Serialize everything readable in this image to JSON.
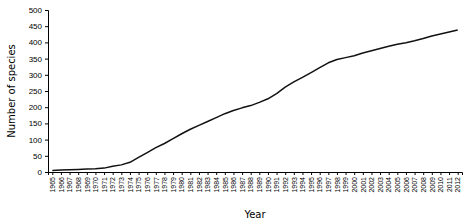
{
  "chart_data": {
    "type": "line",
    "x": [
      1965,
      1966,
      1967,
      1968,
      1969,
      1970,
      1971,
      1972,
      1973,
      1974,
      1975,
      1976,
      1977,
      1978,
      1979,
      1980,
      1981,
      1982,
      1983,
      1984,
      1985,
      1986,
      1987,
      1988,
      1989,
      1990,
      1991,
      1992,
      1993,
      1994,
      1995,
      1996,
      1997,
      1998,
      1999,
      2000,
      2001,
      2002,
      2003,
      2004,
      2005,
      2006,
      2007,
      2008,
      2009,
      2010,
      2011,
      2012
    ],
    "values": [
      5,
      6,
      7,
      8,
      9,
      10,
      12,
      18,
      22,
      30,
      45,
      60,
      75,
      88,
      103,
      118,
      132,
      144,
      156,
      168,
      180,
      190,
      198,
      205,
      215,
      226,
      242,
      262,
      278,
      292,
      307,
      322,
      337,
      347,
      353,
      359,
      367,
      374,
      381,
      388,
      394,
      399,
      405,
      412,
      420,
      426,
      432,
      438
    ],
    "color": "#111111",
    "xlabel": "Year",
    "ylabel": "Number of species",
    "xlim": [
      1964.5,
      2012.5
    ],
    "ylim": [
      0,
      500
    ],
    "xticks": [
      1965,
      1966,
      1967,
      1968,
      1969,
      1970,
      1971,
      1972,
      1973,
      1974,
      1975,
      1976,
      1977,
      1978,
      1979,
      1980,
      1981,
      1982,
      1983,
      1984,
      1985,
      1986,
      1987,
      1988,
      1989,
      1990,
      1991,
      1992,
      1993,
      1994,
      1995,
      1996,
      1997,
      1998,
      1999,
      2000,
      2001,
      2002,
      2003,
      2004,
      2005,
      2006,
      2007,
      2008,
      2009,
      2010,
      2011,
      2012
    ],
    "yticks": [
      0,
      50,
      100,
      150,
      200,
      250,
      300,
      350,
      400,
      450,
      500
    ]
  }
}
